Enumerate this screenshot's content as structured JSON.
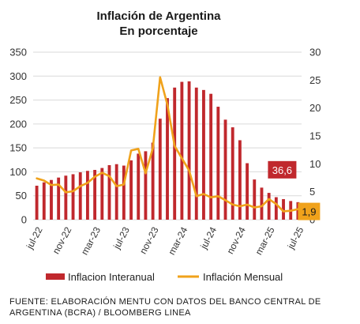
{
  "chart_data": {
    "type": "bar+line",
    "title": [
      "Inflación  de Argentina",
      "En porcentaje"
    ],
    "y_left": {
      "range": [
        0,
        350
      ],
      "ticks": [
        0,
        50,
        100,
        150,
        200,
        250,
        300,
        350
      ]
    },
    "y_right": {
      "range": [
        0,
        30
      ],
      "ticks": [
        0,
        5,
        10,
        15,
        20,
        25,
        30
      ]
    },
    "x_tick_labels": [
      "jul-22",
      "nov-22",
      "mar-23",
      "jul-23",
      "nov-23",
      "mar-24",
      "jul-24",
      "nov-24",
      "mar-25",
      "jul-25"
    ],
    "months": [
      "jul-22",
      "ago-22",
      "sep-22",
      "oct-22",
      "nov-22",
      "dic-22",
      "ene-23",
      "feb-23",
      "mar-23",
      "abr-23",
      "may-23",
      "jun-23",
      "jul-23",
      "ago-23",
      "sep-23",
      "oct-23",
      "nov-23",
      "dic-23",
      "ene-24",
      "feb-24",
      "mar-24",
      "abr-24",
      "may-24",
      "jun-24",
      "jul-24",
      "ago-24",
      "sep-24",
      "oct-24",
      "nov-24",
      "dic-24",
      "ene-25",
      "feb-25",
      "mar-25",
      "abr-25",
      "may-25",
      "jun-25",
      "jul-25"
    ],
    "series": [
      {
        "name": "Inflacion Interanual",
        "kind": "bar",
        "axis": "left",
        "color": "#c0282d",
        "values": [
          71,
          78,
          83,
          88,
          92,
          95,
          99,
          102,
          104,
          108,
          114,
          116,
          113,
          124,
          138,
          143,
          161,
          211,
          254,
          276,
          288,
          289,
          276,
          271,
          263,
          236,
          209,
          193,
          166,
          118,
          84,
          67,
          56,
          47,
          43,
          39,
          36.6
        ]
      },
      {
        "name": "Inflación Mensual",
        "kind": "line",
        "axis": "right",
        "color": "#f0a21b",
        "values": [
          7.4,
          7.0,
          6.2,
          6.3,
          4.9,
          5.1,
          6.0,
          6.6,
          7.7,
          8.4,
          7.8,
          6.0,
          6.3,
          12.4,
          12.7,
          8.3,
          12.8,
          25.5,
          20.6,
          13.2,
          11.0,
          8.8,
          4.2,
          4.6,
          4.0,
          4.2,
          3.5,
          2.7,
          2.4,
          2.7,
          2.2,
          2.4,
          3.7,
          2.8,
          1.5,
          1.6,
          1.9
        ]
      }
    ],
    "annotations": {
      "last_interanual": "36,6",
      "last_mensual": "1,9"
    },
    "legend": {
      "placement": "bottom"
    }
  },
  "source": "FUENTE: ELABORACIÓN MENTU CON DATOS DEL BANCO CENTRAL DE ARGENTINA (BCRA) / BLOOMBERG LINEA"
}
